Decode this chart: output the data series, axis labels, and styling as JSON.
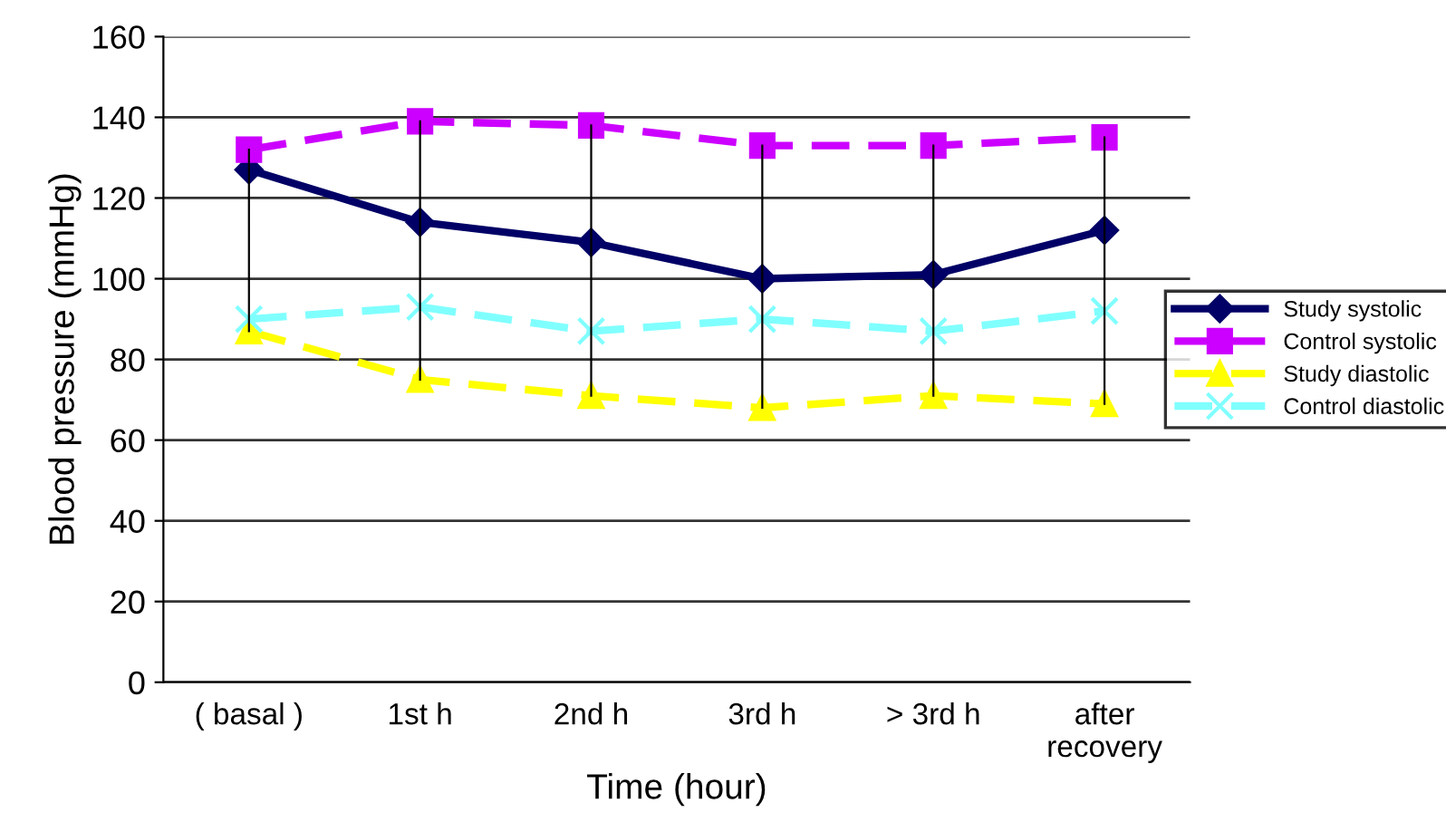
{
  "chart_data": {
    "type": "line",
    "xlabel": "Time (hour)",
    "ylabel": "Blood pressure (mmHg)",
    "categories": [
      "( basal )",
      "1st h",
      "2nd h",
      "3rd h",
      "> 3rd h",
      "after\nrecovery"
    ],
    "series": [
      {
        "name": "Study systolic",
        "color": "#000066",
        "marker": "diamond",
        "line_style": "solid",
        "values": [
          127,
          114,
          109,
          100,
          101,
          112
        ]
      },
      {
        "name": "Control systolic",
        "color": "#cc00ff",
        "marker": "square",
        "line_style": "dashed",
        "values": [
          132,
          139,
          138,
          133,
          133,
          135
        ],
        "errors": [
          [
            87,
            132
          ],
          [
            75,
            139
          ],
          [
            71,
            138
          ],
          [
            68,
            133
          ],
          [
            71,
            133
          ],
          [
            69,
            135
          ]
        ]
      },
      {
        "name": "Study diastolic",
        "color": "#ffff00",
        "marker": "triangle",
        "line_style": "dashed",
        "values": [
          87,
          75,
          71,
          68,
          71,
          69
        ]
      },
      {
        "name": "Control diastolic",
        "color": "#80ffff",
        "marker": "cross",
        "line_style": "dashed",
        "values": [
          90,
          93,
          87,
          90,
          87,
          92
        ]
      }
    ],
    "ylim": [
      0,
      160
    ],
    "yticks": [
      0,
      20,
      40,
      60,
      80,
      100,
      120,
      140,
      160
    ],
    "grid": "y",
    "legend": "right"
  }
}
